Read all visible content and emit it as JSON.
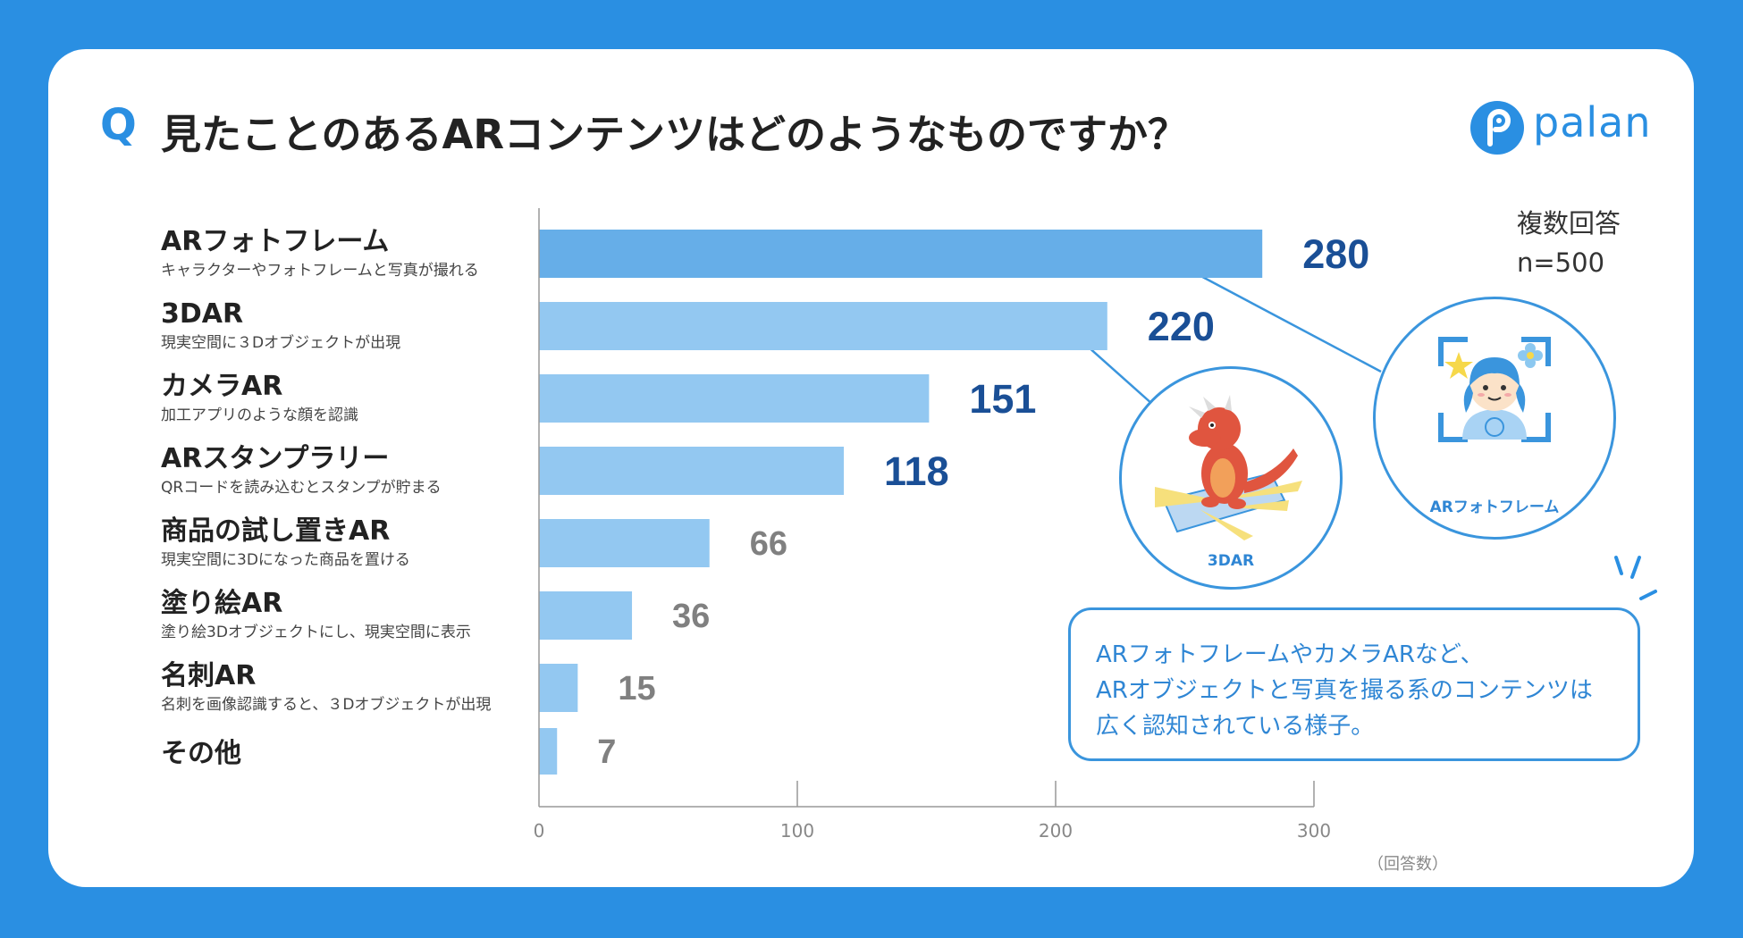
{
  "header": {
    "q_mark": "Q",
    "title": "見たことのあるARコンテンツはどのようなものですか？",
    "brand": "palan",
    "brand_color": "#2a8fe2"
  },
  "note": {
    "multi": "複数回答",
    "n": "n=500"
  },
  "categories": [
    {
      "label": "ARフォトフレーム",
      "sub": "キャラクターやフォトフレームと写真が撮れる"
    },
    {
      "label": "3DAR",
      "sub": "現実空間に３Dオブジェクトが出現"
    },
    {
      "label": "カメラAR",
      "sub": "加工アプリのような顔を認識"
    },
    {
      "label": "ARスタンプラリー",
      "sub": "QRコードを読み込むとスタンプが貯まる"
    },
    {
      "label": "商品の試し置きAR",
      "sub": "現実空間に3Dになった商品を置ける"
    },
    {
      "label": "塗り絵AR",
      "sub": "塗り絵3Dオブジェクトにし、現実空間に表示"
    },
    {
      "label": "名刺AR",
      "sub": "名刺を画像認識すると、３Dオブジェクトが出現"
    },
    {
      "label": "その他",
      "sub": ""
    }
  ],
  "chart_data": {
    "type": "bar",
    "orientation": "horizontal",
    "categories": [
      "ARフォトフレーム",
      "3DAR",
      "カメラAR",
      "ARスタンプラリー",
      "商品の試し置きAR",
      "塗り絵AR",
      "名刺AR",
      "その他"
    ],
    "values": [
      280,
      220,
      151,
      118,
      66,
      36,
      15,
      7
    ],
    "xlim": [
      0,
      300
    ],
    "xticks": [
      0,
      100,
      200,
      300
    ],
    "xlabel": "（回答数）",
    "grid": false,
    "colors": {
      "top_bar": "#66aee8",
      "bar": "#93c8f1",
      "label_emphasis": "#1a4f96",
      "label_normal": "#808080"
    }
  },
  "illustrations": {
    "ar_photo": "ARフォトフレーム",
    "dar": "3DAR"
  },
  "callout": {
    "lines": [
      "ARフォトフレームやカメラARなど、",
      "ARオブジェクトと写真を撮る系のコンテンツは",
      "広く認知されている様子。"
    ]
  }
}
